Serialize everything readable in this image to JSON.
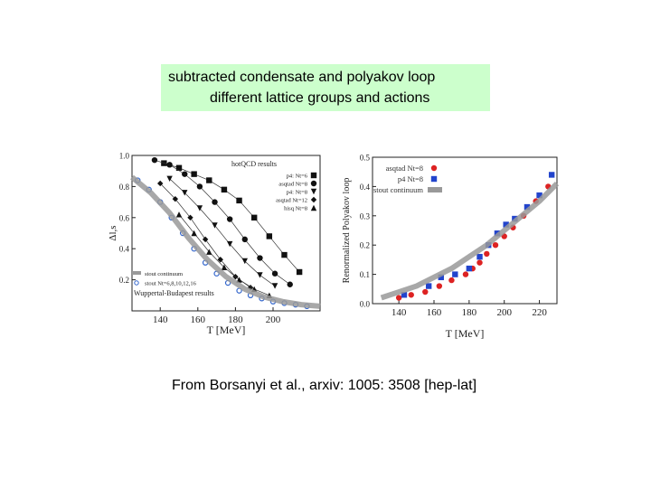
{
  "caption": {
    "line1": "subtracted condensate and polyakov loop",
    "line2": "different lattice groups and actions"
  },
  "citation": "From Borsanyi et al., arxiv: 1005: 3508 [hep-lat]",
  "chart_data": [
    {
      "type": "scatter",
      "title": "",
      "xlabel": "T [MeV]",
      "ylabel": "Δl,s",
      "xlim": [
        125,
        225
      ],
      "ylim": [
        0.0,
        1.0
      ],
      "xticks": [
        140,
        160,
        180,
        200
      ],
      "yticks": [
        0.2,
        0.4,
        0.6,
        0.8,
        1.0
      ],
      "legend_title": "hotQCD results",
      "legend": [
        "p4: Nt=6",
        "asqtad Nt=8",
        "p4: Nt=8",
        "asqtad Nt=12",
        "hisq Nt=8"
      ],
      "legend_bottom": [
        "stout continuum",
        "stout Nt=6,8,10,12,16",
        "Wuppertal-Budapest results"
      ],
      "series": [
        {
          "name": "p4: Nt=6",
          "marker": "square",
          "color": "#111111",
          "x": [
            142,
            150,
            158,
            166,
            174,
            182,
            190,
            198,
            206,
            214
          ],
          "y": [
            0.95,
            0.92,
            0.88,
            0.84,
            0.78,
            0.71,
            0.6,
            0.48,
            0.36,
            0.25
          ]
        },
        {
          "name": "asqtad Nt=8",
          "marker": "circle",
          "color": "#111111",
          "x": [
            137,
            145,
            153,
            161,
            169,
            177,
            185,
            193,
            201,
            209
          ],
          "y": [
            0.97,
            0.94,
            0.88,
            0.8,
            0.7,
            0.59,
            0.46,
            0.34,
            0.24,
            0.17
          ]
        },
        {
          "name": "p4: Nt=8",
          "marker": "triangle-down",
          "color": "#111111",
          "x": [
            145,
            153,
            161,
            169,
            177,
            185,
            193,
            201
          ],
          "y": [
            0.85,
            0.76,
            0.66,
            0.55,
            0.43,
            0.32,
            0.23,
            0.16
          ]
        },
        {
          "name": "asqtad Nt=12",
          "marker": "star",
          "color": "#111111",
          "x": [
            140,
            148,
            156,
            164,
            172,
            180,
            188
          ],
          "y": [
            0.82,
            0.72,
            0.6,
            0.46,
            0.33,
            0.22,
            0.15
          ]
        },
        {
          "name": "hisq Nt=8",
          "marker": "triangle-up",
          "color": "#111111",
          "x": [
            150,
            158,
            166,
            174,
            182,
            190,
            198
          ],
          "y": [
            0.62,
            0.5,
            0.38,
            0.28,
            0.2,
            0.14,
            0.1
          ]
        },
        {
          "name": "Wuppertal-Budapest results",
          "marker": "open-circle",
          "color": "#3366cc",
          "x": [
            128,
            134,
            140,
            146,
            152,
            158,
            164,
            170,
            176,
            182,
            188,
            194,
            200,
            206,
            212,
            218
          ],
          "y": [
            0.84,
            0.78,
            0.7,
            0.6,
            0.5,
            0.4,
            0.31,
            0.24,
            0.18,
            0.13,
            0.1,
            0.08,
            0.06,
            0.05,
            0.04,
            0.03
          ]
        },
        {
          "name": "stout continuum",
          "marker": "band",
          "color": "#999999",
          "x": [
            125,
            135,
            145,
            155,
            165,
            175,
            185,
            195,
            205,
            215,
            225
          ],
          "y": [
            0.86,
            0.76,
            0.63,
            0.47,
            0.33,
            0.22,
            0.14,
            0.09,
            0.06,
            0.04,
            0.03
          ]
        }
      ]
    },
    {
      "type": "scatter",
      "title": "",
      "xlabel": "T [MeV]",
      "ylabel": "Renormalized Polyakov loop",
      "xlim": [
        125,
        230
      ],
      "ylim": [
        0.0,
        0.5
      ],
      "xticks": [
        140,
        160,
        180,
        200,
        220
      ],
      "yticks": [
        0.0,
        0.1,
        0.2,
        0.3,
        0.4,
        0.5
      ],
      "legend": [
        "asqtad Nt=8",
        "p4 Nt=8",
        "stout continuum"
      ],
      "series": [
        {
          "name": "asqtad Nt=8",
          "marker": "circle",
          "color": "#dd2222",
          "x": [
            140,
            147,
            155,
            163,
            170,
            178,
            182,
            186,
            190,
            195,
            200,
            205,
            211,
            218,
            225
          ],
          "y": [
            0.02,
            0.03,
            0.04,
            0.06,
            0.08,
            0.1,
            0.12,
            0.14,
            0.17,
            0.2,
            0.23,
            0.26,
            0.3,
            0.35,
            0.4
          ]
        },
        {
          "name": "p4 Nt=8",
          "marker": "square",
          "color": "#2244cc",
          "x": [
            143,
            157,
            164,
            172,
            180,
            186,
            191,
            196,
            201,
            206,
            213,
            220,
            227
          ],
          "y": [
            0.03,
            0.06,
            0.09,
            0.1,
            0.12,
            0.16,
            0.2,
            0.24,
            0.27,
            0.29,
            0.33,
            0.37,
            0.44
          ]
        },
        {
          "name": "stout continuum",
          "marker": "band",
          "color": "#999999",
          "x": [
            130,
            140,
            150,
            160,
            170,
            180,
            190,
            200,
            210,
            220,
            230
          ],
          "y": [
            0.02,
            0.04,
            0.06,
            0.09,
            0.12,
            0.16,
            0.2,
            0.25,
            0.3,
            0.35,
            0.41
          ]
        }
      ]
    }
  ]
}
